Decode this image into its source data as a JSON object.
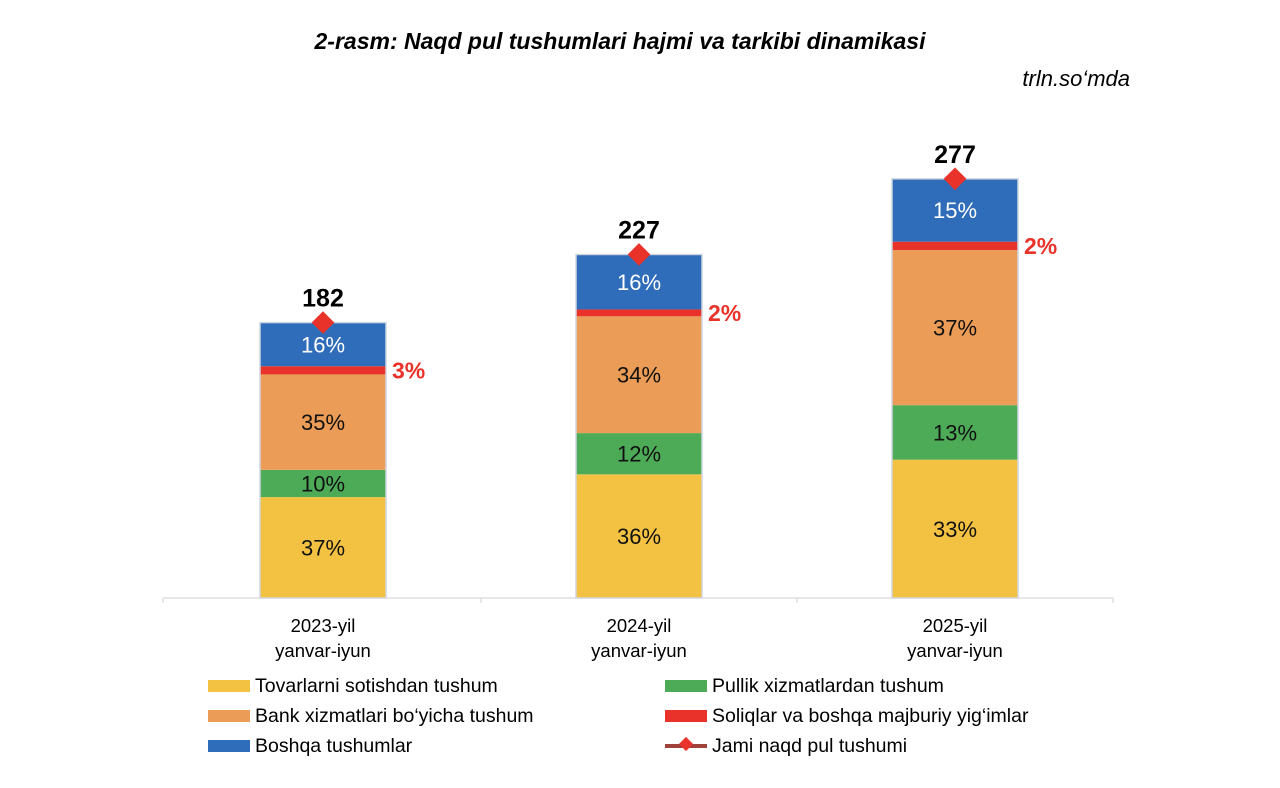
{
  "chart_data": {
    "type": "stacked-bar",
    "title": "2-rasm: Naqd pul tushumlari hajmi va tarkibi dinamikasi",
    "unit": "trln.so‘mda",
    "categories": [
      [
        "2023-yil",
        "yanvar-iyun"
      ],
      [
        "2024-yil",
        "yanvar-iyun"
      ],
      [
        "2025-yil",
        "yanvar-iyun"
      ]
    ],
    "ylim": [
      0,
      300
    ],
    "grid": false,
    "y_axis_visible": false,
    "legend_position": "bottom",
    "series": [
      {
        "name": "Tovarlarni sotishdan tushum",
        "color": "#F4C242",
        "values": [
          37,
          36,
          33
        ],
        "labels": [
          "37%",
          "36%",
          "33%"
        ]
      },
      {
        "name": "Pullik xizmatlardan tushum",
        "color": "#4DAA57",
        "values": [
          10,
          12,
          13
        ],
        "labels": [
          "10%",
          "12%",
          "13%"
        ]
      },
      {
        "name": "Bank xizmatlari bo‘yicha tushum",
        "color": "#EB9C56",
        "values": [
          35,
          34,
          37
        ],
        "labels": [
          "35%",
          "34%",
          "37%"
        ]
      },
      {
        "name": "Soliqlar va boshqa majburiy yig‘imlar",
        "color": "#E8322A",
        "values": [
          3,
          2,
          2
        ],
        "labels": [
          "3%",
          "2%",
          "2%"
        ]
      },
      {
        "name": "Boshqa tushumlar",
        "color": "#2F6DBA",
        "values": [
          16,
          16,
          15
        ],
        "labels": [
          "16%",
          "16%",
          "15%"
        ]
      }
    ],
    "total": {
      "name": "Jami naqd pul tushumi",
      "color": "#E8322A",
      "values": [
        182,
        227,
        277
      ],
      "labels": [
        "182",
        "227",
        "277"
      ]
    }
  }
}
